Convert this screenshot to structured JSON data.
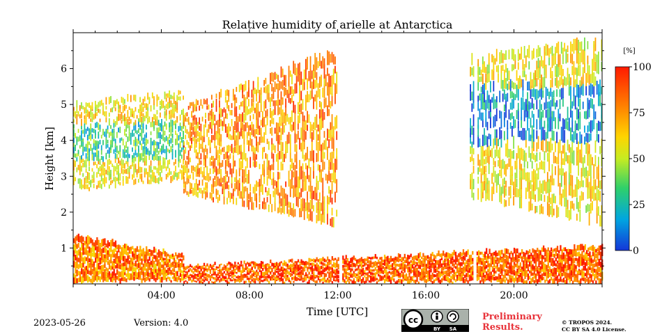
{
  "chart_data": {
    "type": "heatmap",
    "title": "Relative humidity of arielle at Antarctica",
    "xlabel": "Time [UTC]",
    "ylabel": "Height [km]",
    "x_range_hours": [
      0,
      24
    ],
    "ylim": [
      0,
      7
    ],
    "x_ticks": [
      "04:00",
      "08:00",
      "12:00",
      "16:00",
      "20:00"
    ],
    "x_tick_hours": [
      4,
      8,
      12,
      16,
      20
    ],
    "y_ticks": [
      "1",
      "2",
      "3",
      "4",
      "5",
      "6"
    ],
    "y_tick_values": [
      1,
      2,
      3,
      4,
      5,
      6
    ],
    "colorbar": {
      "unit": "[%]",
      "range": [
        0,
        100
      ],
      "ticks": [
        "0",
        "25",
        "50",
        "75",
        "100"
      ],
      "tick_values": [
        0,
        25,
        50,
        75,
        100
      ],
      "colormap": [
        "#1436d8",
        "#00a6e0",
        "#2fd06a",
        "#c6ec22",
        "#ffd400",
        "#ff7a00",
        "#ff1a00"
      ]
    },
    "layers": [
      {
        "t0": 0.0,
        "t1": 5.0,
        "bottom_km": [
          0.05,
          0.1
        ],
        "top_km": [
          1.35,
          0.8
        ],
        "mean_rh": 82
      },
      {
        "t0": 5.0,
        "t1": 24.0,
        "bottom_km": [
          0.05,
          0.05
        ],
        "top_km": [
          0.5,
          1.05
        ],
        "mean_rh": 88
      },
      {
        "t0": 0.0,
        "t1": 5.0,
        "bottom_km": [
          2.6,
          2.9
        ],
        "top_km": [
          5.0,
          5.4
        ],
        "mean_rh": 62
      },
      {
        "t0": 5.0,
        "t1": 12.0,
        "bottom_km": [
          2.5,
          1.6
        ],
        "top_km": [
          5.0,
          6.5
        ],
        "mean_rh": 78
      },
      {
        "t0": 18.0,
        "t1": 24.0,
        "bottom_km": [
          2.4,
          1.6
        ],
        "top_km": [
          6.3,
          6.9
        ],
        "mean_rh": 60
      }
    ],
    "data_gaps_hours": [
      [
        12.05,
        12.2
      ],
      [
        18.15,
        18.3
      ]
    ]
  },
  "footer": {
    "date": "2023-05-26",
    "version": "Version: 4.0",
    "preliminary_line1": "Preliminary",
    "preliminary_line2": "Results.",
    "copyright_line1": "© TROPOS 2024.",
    "copyright_line2": "CC BY SA 4.0 License.",
    "license_badge": {
      "cc": "cc",
      "by": "BY",
      "sa": "SA"
    }
  }
}
